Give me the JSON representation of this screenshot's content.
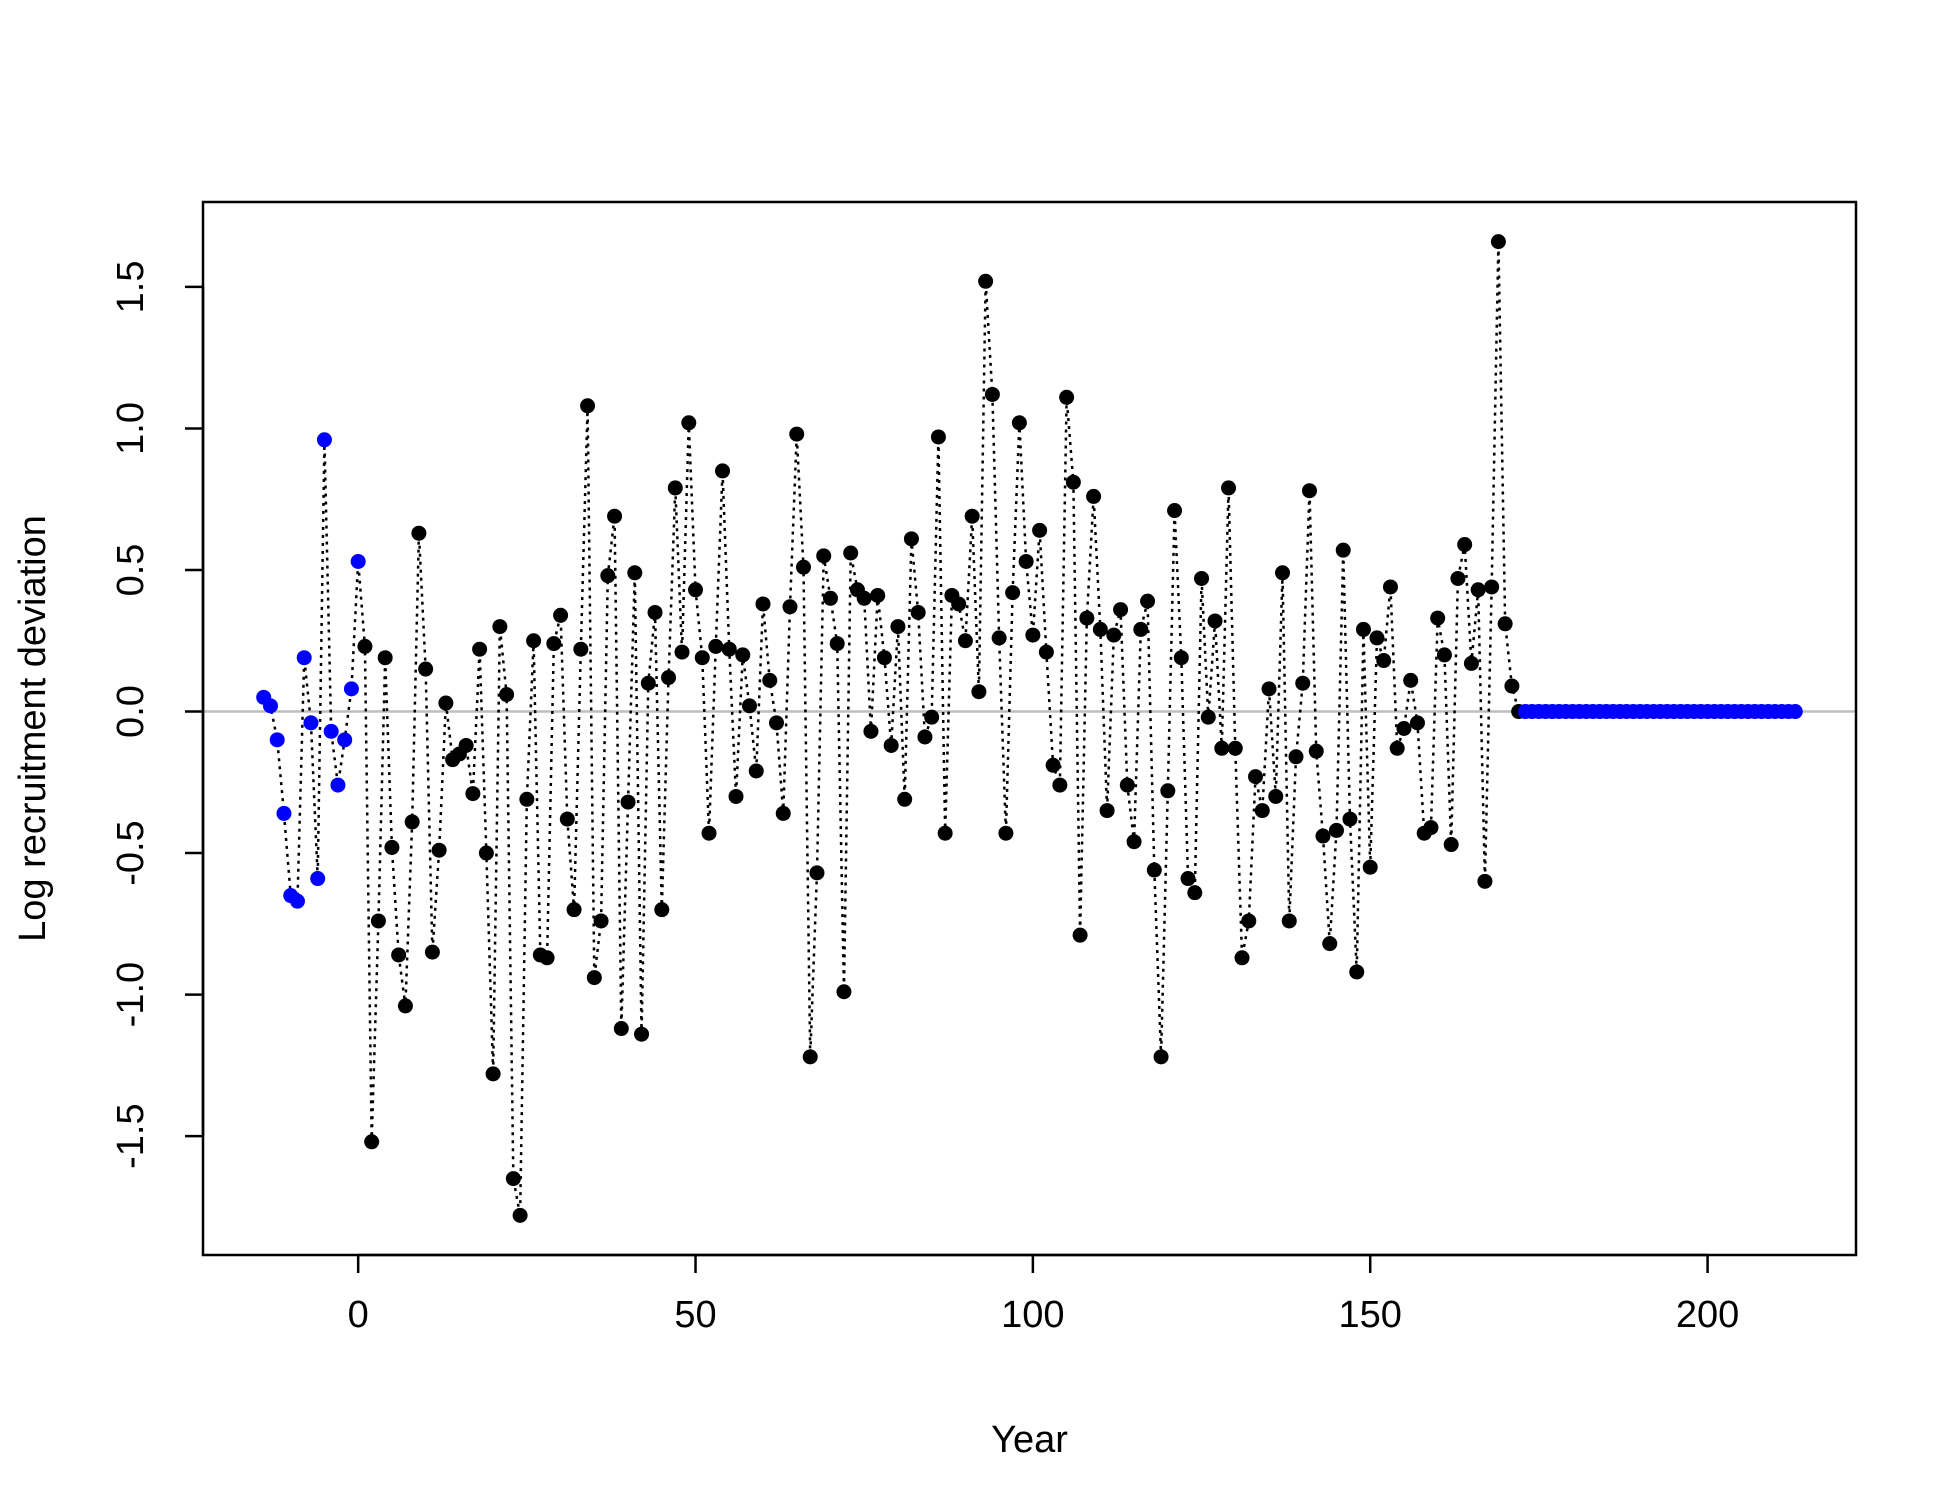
{
  "chart_data": {
    "type": "scatter",
    "title": "",
    "xlabel": "Year",
    "ylabel": "Log recruitment deviation",
    "xlim": [
      -23,
      222
    ],
    "ylim": [
      -1.92,
      1.8
    ],
    "x_ticks": [
      0,
      50,
      100,
      150,
      200
    ],
    "x_tick_labels": [
      "0",
      "50",
      "100",
      "150",
      "200"
    ],
    "y_ticks": [
      -1.5,
      -1.0,
      -0.5,
      0.0,
      0.5,
      1.0,
      1.5
    ],
    "y_tick_labels": [
      "-1.5",
      "-1.0",
      "-0.5",
      "0.0",
      "0.5",
      "1.0",
      "1.5"
    ],
    "grid": false,
    "reference_line": {
      "y": 0,
      "color": "#bebebe"
    },
    "connector": {
      "style": "dotted",
      "color": "#000000"
    },
    "series": [
      {
        "color": "#0000ff",
        "x": [
          -14,
          -13,
          -12,
          -11,
          -10,
          -9,
          -8,
          -7,
          -6,
          -5,
          -4,
          -3,
          -2,
          -1,
          0
        ],
        "y": [
          0.05,
          0.02,
          -0.1,
          -0.36,
          -0.65,
          -0.67,
          0.19,
          -0.04,
          -0.59,
          0.96,
          -0.07,
          -0.26,
          -0.1,
          0.08,
          0.53
        ]
      },
      {
        "color": "#000000",
        "x_start": 1,
        "y": [
          0.23,
          -1.52,
          -0.74,
          0.19,
          -0.48,
          -0.86,
          -1.04,
          -0.39,
          0.63,
          0.15,
          -0.85,
          -0.49,
          0.03,
          -0.17,
          -0.15,
          -0.12,
          -0.29,
          0.22,
          -0.5,
          -1.28,
          0.3,
          0.06,
          -1.65,
          -1.78,
          -0.31,
          0.25,
          -0.86,
          -0.87,
          0.24,
          0.34,
          -0.38,
          -0.7,
          0.22,
          1.08,
          -0.94,
          -0.74,
          0.48,
          0.69,
          -1.12,
          -0.32,
          0.49,
          -1.14,
          0.1,
          0.35,
          -0.7,
          0.12,
          0.79,
          0.21,
          1.02,
          0.43,
          0.19,
          -0.43,
          0.23,
          0.85,
          0.22,
          -0.3,
          0.2,
          0.02,
          -0.21,
          0.38,
          0.11,
          -0.04,
          -0.36,
          0.37,
          0.98,
          0.51,
          -1.22,
          -0.57,
          0.55,
          0.4,
          0.24,
          -0.99,
          0.56,
          0.43,
          0.4,
          -0.07,
          0.41,
          0.19,
          -0.12,
          0.3,
          -0.31,
          0.61,
          0.35,
          -0.09,
          -0.02,
          0.97,
          -0.43,
          0.41,
          0.38,
          0.25,
          0.69,
          0.07,
          1.52,
          1.12,
          0.26,
          -0.43,
          0.42,
          1.02,
          0.53,
          0.27,
          0.64,
          0.21,
          -0.19,
          -0.26,
          1.11,
          0.81,
          -0.79,
          0.33,
          0.76,
          0.29,
          -0.35,
          0.27,
          0.36,
          -0.26,
          -0.46,
          0.29,
          0.39,
          -0.56,
          -1.22,
          -0.28,
          0.71,
          0.19,
          -0.59,
          -0.64,
          0.47,
          -0.02,
          0.32,
          -0.13,
          0.79,
          -0.13,
          -0.87,
          -0.74,
          -0.23,
          -0.35,
          0.08,
          -0.3,
          0.49,
          -0.74,
          -0.16,
          0.1,
          0.78,
          -0.14,
          -0.44,
          -0.82,
          -0.42,
          0.57,
          -0.38,
          -0.92,
          0.29,
          -0.55,
          0.26,
          0.18,
          0.44,
          -0.13,
          -0.06,
          0.11,
          -0.04,
          -0.43,
          -0.41,
          0.33,
          0.2,
          -0.47,
          0.47,
          0.59,
          0.17,
          0.43,
          -0.6,
          0.44,
          1.66,
          0.31,
          0.09,
          0.0
        ]
      },
      {
        "color": "#0000ff",
        "x_start": 173,
        "x_end": 213,
        "y_constant": 0.0
      }
    ]
  }
}
